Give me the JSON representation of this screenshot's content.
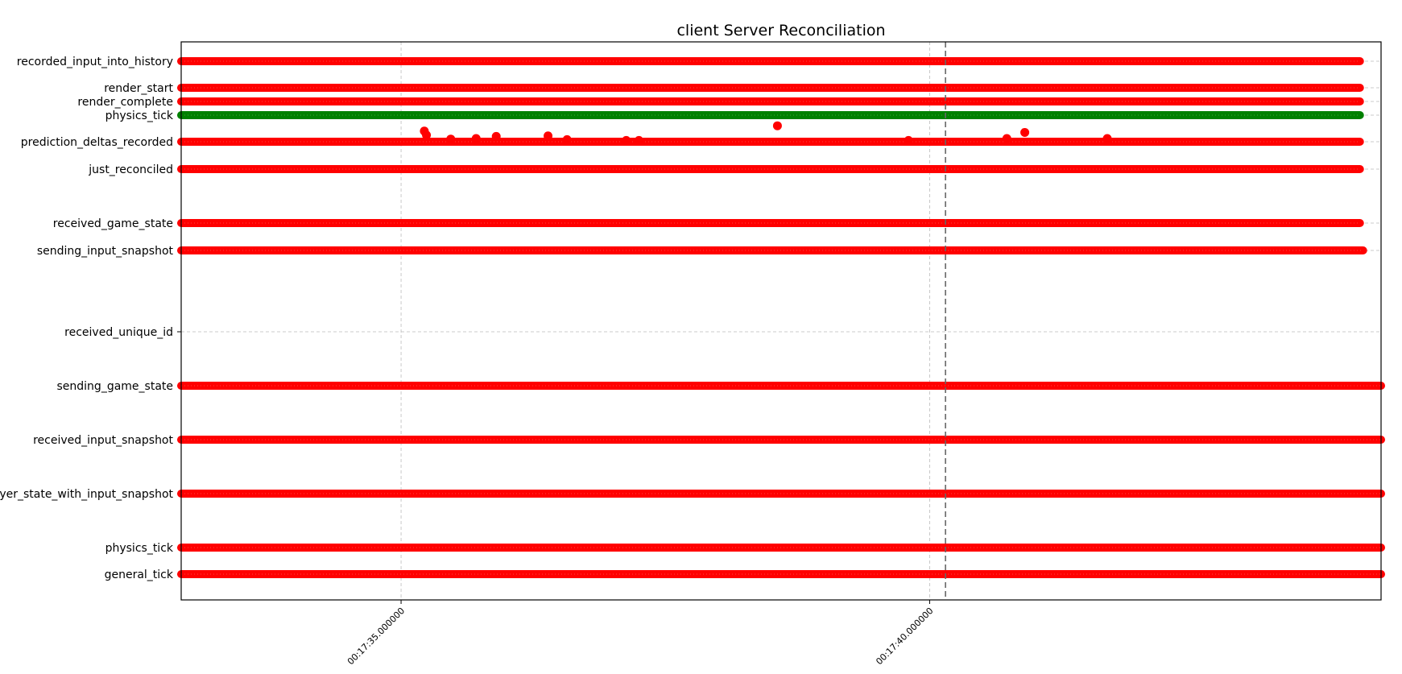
{
  "chart_data": {
    "type": "scatter",
    "title": "client Server Reconciliation",
    "xlabel": "",
    "ylabel": "",
    "x_unit": "seconds",
    "x_ticks": [
      {
        "value": 1055.0,
        "label": "00:17:35.000000"
      },
      {
        "value": 1060.0,
        "label": "00:17:40.000000"
      }
    ],
    "xlim": [
      1052.92,
      1064.27
    ],
    "marker_line": {
      "x": 1060.15,
      "style": "dashed"
    },
    "grid": true,
    "colors": {
      "event": "#ff0000",
      "highlight": "#008000",
      "marker_line": "#666666",
      "grid": "#bbbbbb"
    },
    "events": [
      {
        "label": "recorded_input_into_history",
        "x_start": 1052.92,
        "x_end": 1064.07,
        "color": "#ff0000"
      },
      {
        "label": "render_start",
        "x_start": 1052.92,
        "x_end": 1064.07,
        "color": "#ff0000"
      },
      {
        "label": "render_complete",
        "x_start": 1052.92,
        "x_end": 1064.07,
        "color": "#ff0000"
      },
      {
        "label": "physics_tick",
        "x_start": 1052.92,
        "x_end": 1064.07,
        "color": "#008000"
      },
      {
        "label": "prediction_deltas_recorded",
        "x_start": 1052.92,
        "x_end": 1064.07,
        "color": "#ff0000"
      },
      {
        "label": "just_reconciled",
        "x_start": 1052.92,
        "x_end": 1064.07,
        "color": "#ff0000"
      },
      {
        "label": "received_game_state",
        "x_start": 1052.92,
        "x_end": 1064.07,
        "color": "#ff0000"
      },
      {
        "label": "sending_input_snapshot",
        "x_start": 1052.92,
        "x_end": 1064.1,
        "color": "#ff0000"
      },
      {
        "label": "received_unique_id",
        "x_start": null,
        "x_end": null,
        "color": "#ff0000"
      },
      {
        "label": "sending_game_state",
        "x_start": 1052.92,
        "x_end": 1064.27,
        "color": "#ff0000"
      },
      {
        "label": "received_input_snapshot",
        "x_start": 1052.92,
        "x_end": 1064.27,
        "color": "#ff0000"
      },
      {
        "label": "yer_state_with_input_snapshot",
        "x_start": 1052.92,
        "x_end": 1064.27,
        "color": "#ff0000"
      },
      {
        "label": "physics_tick",
        "x_start": 1052.92,
        "x_end": 1064.27,
        "color": "#ff0000"
      },
      {
        "label": "general_tick",
        "x_start": 1052.92,
        "x_end": 1064.27,
        "color": "#ff0000"
      }
    ],
    "outliers": [
      {
        "x": 1055.22,
        "row": "prediction_deltas_recorded",
        "y_offset": 0.4
      },
      {
        "x": 1055.24,
        "row": "prediction_deltas_recorded",
        "y_offset": 0.25
      },
      {
        "x": 1055.47,
        "row": "prediction_deltas_recorded",
        "y_offset": 0.1
      },
      {
        "x": 1055.71,
        "row": "prediction_deltas_recorded",
        "y_offset": 0.12
      },
      {
        "x": 1055.9,
        "row": "prediction_deltas_recorded",
        "y_offset": 0.2
      },
      {
        "x": 1056.39,
        "row": "prediction_deltas_recorded",
        "y_offset": 0.22
      },
      {
        "x": 1056.57,
        "row": "prediction_deltas_recorded",
        "y_offset": 0.08
      },
      {
        "x": 1057.13,
        "row": "prediction_deltas_recorded",
        "y_offset": 0.05
      },
      {
        "x": 1057.25,
        "row": "prediction_deltas_recorded",
        "y_offset": 0.05
      },
      {
        "x": 1058.56,
        "row": "prediction_deltas_recorded",
        "y_offset": 0.6
      },
      {
        "x": 1059.8,
        "row": "prediction_deltas_recorded",
        "y_offset": 0.05
      },
      {
        "x": 1060.73,
        "row": "prediction_deltas_recorded",
        "y_offset": 0.12
      },
      {
        "x": 1060.9,
        "row": "prediction_deltas_recorded",
        "y_offset": 0.35
      },
      {
        "x": 1061.68,
        "row": "prediction_deltas_recorded",
        "y_offset": 0.12
      }
    ]
  }
}
